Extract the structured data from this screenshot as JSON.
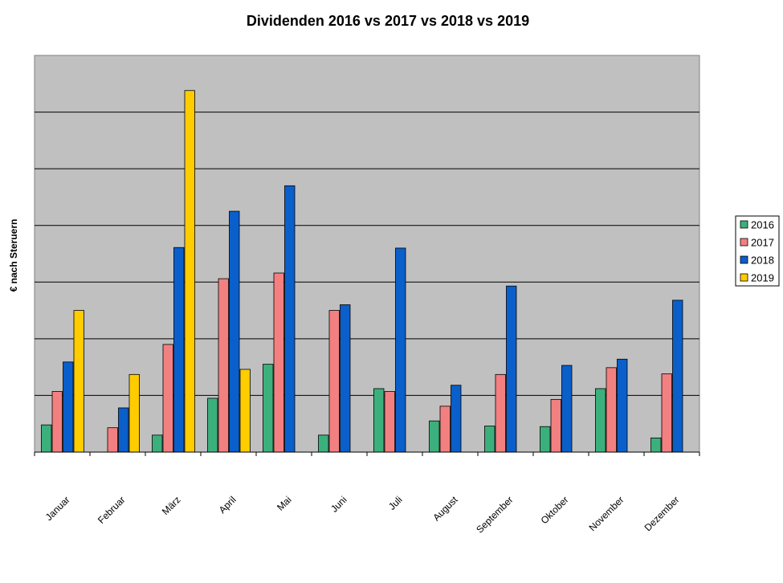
{
  "chart_data": {
    "type": "bar",
    "title": "Dividenden 2016 vs 2017 vs 2018 vs 2019",
    "xlabel": "",
    "ylabel": "€ nach Steruern",
    "ylim": [
      0,
      7
    ],
    "y_ticks_labeled": false,
    "grid": true,
    "legend_position": "right",
    "categories": [
      "Januar",
      "Februar",
      "März",
      "April",
      "Mai",
      "Juni",
      "Juli",
      "August",
      "September",
      "Oktober",
      "November",
      "Dezember"
    ],
    "series": [
      {
        "name": "2016",
        "color": "#3cb07c",
        "values": [
          0.48,
          0,
          0.3,
          0.95,
          1.55,
          0.3,
          1.12,
          0.55,
          0.46,
          0.45,
          1.12,
          0.25
        ]
      },
      {
        "name": "2017",
        "color": "#f28080",
        "values": [
          1.07,
          0.43,
          1.9,
          3.06,
          3.16,
          2.5,
          1.07,
          0.81,
          1.37,
          0.93,
          1.49,
          1.38
        ]
      },
      {
        "name": "2018",
        "color": "#0a5fcb",
        "values": [
          1.59,
          0.78,
          3.61,
          4.25,
          4.7,
          2.6,
          3.6,
          1.18,
          2.93,
          1.53,
          1.64,
          2.68
        ]
      },
      {
        "name": "2019",
        "color": "#ffcc00",
        "values": [
          2.5,
          1.37,
          6.38,
          1.46,
          0,
          0,
          0,
          0,
          0,
          0,
          0,
          0
        ]
      }
    ]
  }
}
